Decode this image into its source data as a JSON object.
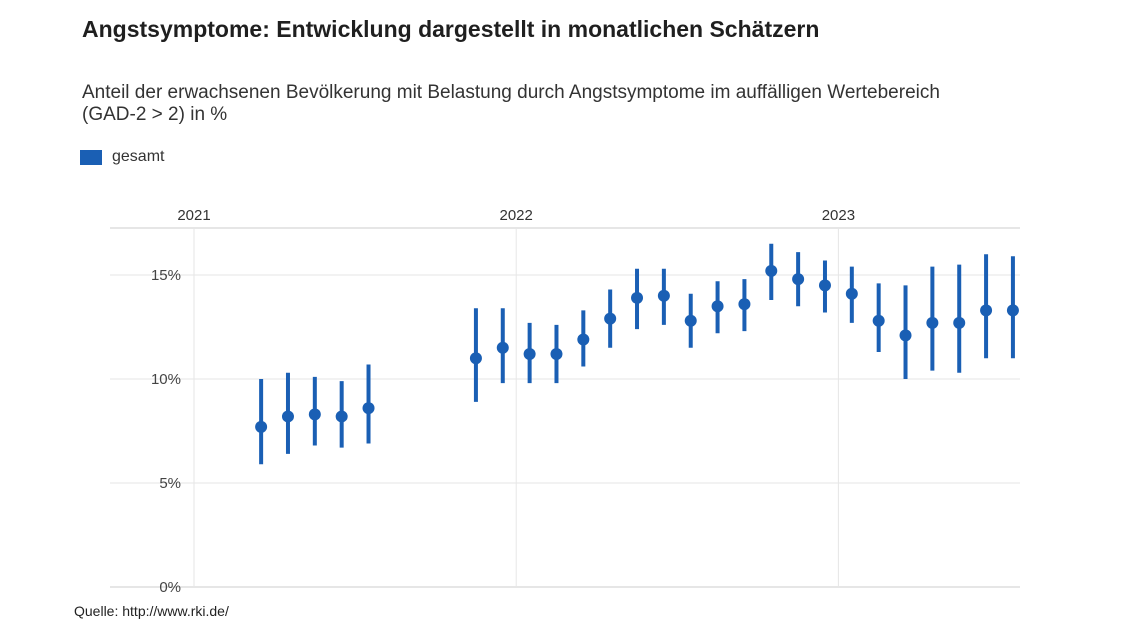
{
  "title": "Angstsymptome: Entwicklung dargestellt in monatlichen Schätzern",
  "subtitle": "Anteil der erwachsenen Bevölkerung mit Belastung durch Angstsymptome im auffälligen Wertebereich (GAD-2 > 2) in %",
  "source": "Quelle: http://www.rki.de/",
  "colors": {
    "series": "#1a5fb4",
    "grid": "#e6e6e6",
    "axis": "#cccccc"
  },
  "chart_data": {
    "type": "scatter",
    "title": "Angstsymptome: Entwicklung dargestellt in monatlichen Schätzern",
    "ylabel": "",
    "xlabel": "",
    "ylim": [
      0,
      17
    ],
    "y_ticks": [
      0,
      5,
      10,
      15
    ],
    "y_tick_labels": [
      "0%",
      "5%",
      "10%",
      "15%"
    ],
    "year_labels": [
      {
        "label": "2021",
        "month": 0
      },
      {
        "label": "2022",
        "month": 12
      },
      {
        "label": "2023",
        "month": 24
      }
    ],
    "month_range": [
      0,
      36
    ],
    "legend": {
      "position": "top-left",
      "entries": [
        "gesamt"
      ]
    },
    "grid": true,
    "series": [
      {
        "name": "gesamt",
        "points": [
          {
            "month": 2.5,
            "value": 7.7,
            "low": 5.9,
            "high": 10.0
          },
          {
            "month": 3.5,
            "value": 8.2,
            "low": 6.4,
            "high": 10.3
          },
          {
            "month": 4.5,
            "value": 8.3,
            "low": 6.8,
            "high": 10.1
          },
          {
            "month": 5.5,
            "value": 8.2,
            "low": 6.7,
            "high": 9.9
          },
          {
            "month": 6.5,
            "value": 8.6,
            "low": 6.9,
            "high": 10.7
          },
          {
            "month": 10.5,
            "value": 11.0,
            "low": 8.9,
            "high": 13.4
          },
          {
            "month": 11.5,
            "value": 11.5,
            "low": 9.8,
            "high": 13.4
          },
          {
            "month": 12.5,
            "value": 11.2,
            "low": 9.8,
            "high": 12.7
          },
          {
            "month": 13.5,
            "value": 11.2,
            "low": 9.8,
            "high": 12.6
          },
          {
            "month": 14.5,
            "value": 11.9,
            "low": 10.6,
            "high": 13.3
          },
          {
            "month": 15.5,
            "value": 12.9,
            "low": 11.5,
            "high": 14.3
          },
          {
            "month": 16.5,
            "value": 13.9,
            "low": 12.4,
            "high": 15.3
          },
          {
            "month": 17.5,
            "value": 14.0,
            "low": 12.6,
            "high": 15.3
          },
          {
            "month": 18.5,
            "value": 12.8,
            "low": 11.5,
            "high": 14.1
          },
          {
            "month": 19.5,
            "value": 13.5,
            "low": 12.2,
            "high": 14.7
          },
          {
            "month": 20.5,
            "value": 13.6,
            "low": 12.3,
            "high": 14.8
          },
          {
            "month": 21.5,
            "value": 15.2,
            "low": 13.8,
            "high": 16.5
          },
          {
            "month": 22.5,
            "value": 14.8,
            "low": 13.5,
            "high": 16.1
          },
          {
            "month": 23.5,
            "value": 14.5,
            "low": 13.2,
            "high": 15.7
          },
          {
            "month": 24.5,
            "value": 14.1,
            "low": 12.7,
            "high": 15.4
          },
          {
            "month": 25.5,
            "value": 12.8,
            "low": 11.3,
            "high": 14.6
          },
          {
            "month": 26.5,
            "value": 12.1,
            "low": 10.0,
            "high": 14.5
          },
          {
            "month": 27.5,
            "value": 12.7,
            "low": 10.4,
            "high": 15.4
          },
          {
            "month": 28.5,
            "value": 12.7,
            "low": 10.3,
            "high": 15.5
          },
          {
            "month": 29.5,
            "value": 13.3,
            "low": 11.0,
            "high": 16.0
          },
          {
            "month": 30.5,
            "value": 13.3,
            "low": 11.0,
            "high": 15.9
          }
        ]
      }
    ]
  }
}
